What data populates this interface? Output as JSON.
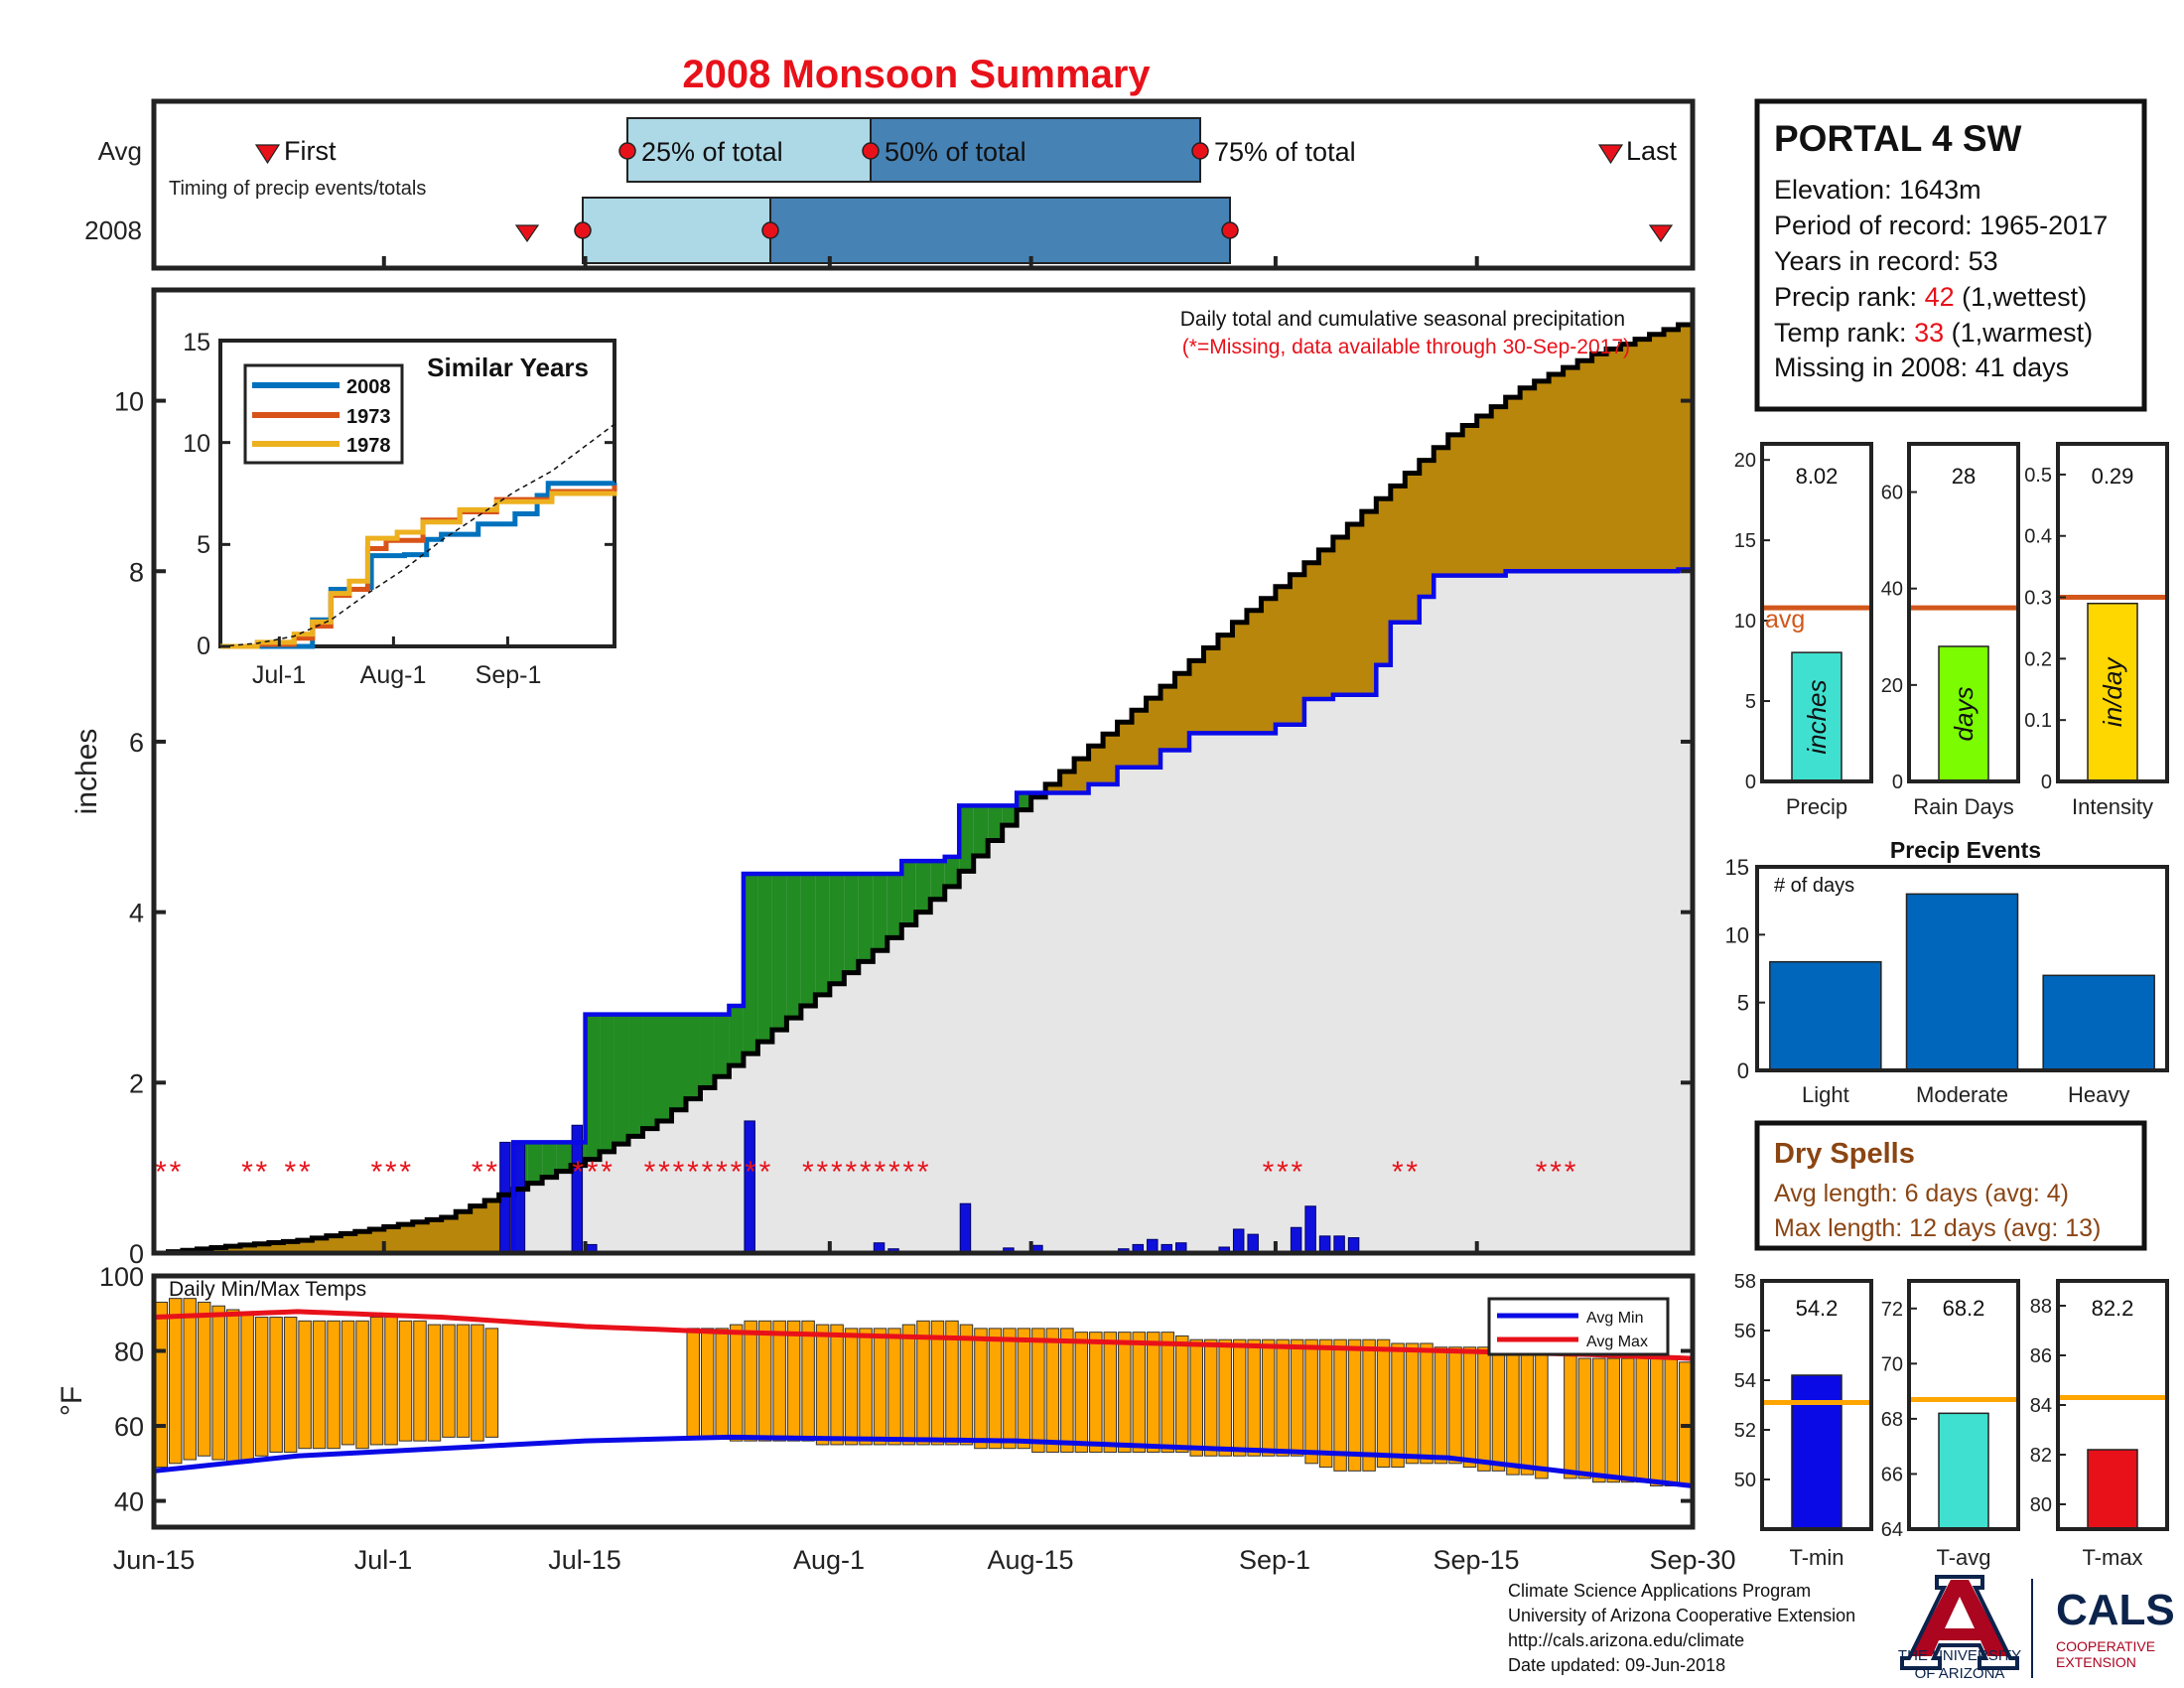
{
  "title": "2008 Monsoon Summary",
  "timing": {
    "row_labels": [
      "Avg",
      "2008"
    ],
    "caption": "Timing of precip events/totals",
    "first_label": "First",
    "last_label": "Last",
    "p25_label": "25% of total",
    "p50_label": "50% of total",
    "p75_label": "75% of total",
    "avg": {
      "first": "Jun-21",
      "p25": "Jul-16",
      "p50": "Jul-27",
      "p75": "Aug-21",
      "last": "Sep-26"
    },
    "year": {
      "first": "Jul-10",
      "p25": "Jul-14",
      "p50": "Jul-28",
      "p75": "Aug-23",
      "last": "Sep-29"
    }
  },
  "station": {
    "name": "PORTAL 4 SW",
    "elevation": "Elevation: 1643m",
    "period": "Period of record: 1965-2017",
    "years": "Years in record: 53",
    "precip_rank_prefix": "Precip rank: ",
    "precip_rank": "42",
    "precip_rank_suffix": " (1,wettest)",
    "temp_rank_prefix": "Temp rank: ",
    "temp_rank": "33",
    "temp_rank_suffix": " (1,warmest)",
    "missing": "Missing in 2008: 41 days"
  },
  "main_chart": {
    "caption": "Daily total and cumulative seasonal precipitation",
    "missing_note": "(*=Missing, data available through 30-Sep-2017)",
    "ylabel": "inches",
    "yticks": [
      "0",
      "2",
      "4",
      "6",
      "8",
      "10"
    ]
  },
  "similar_years": {
    "title": "Similar Years",
    "legend": [
      "2008",
      "1973",
      "1978"
    ],
    "yticks": [
      "0",
      "5",
      "10",
      "15"
    ],
    "xticks": [
      "Jul-1",
      "Aug-1",
      "Sep-1"
    ]
  },
  "temp_chart": {
    "caption": "Daily Min/Max Temps",
    "ylabel": "°F",
    "yticks": [
      "40",
      "60",
      "80",
      "100"
    ],
    "legend_min": "Avg Min",
    "legend_max": "Avg Max"
  },
  "x_axis_labels": [
    "Jun-15",
    "Jul-1",
    "Jul-15",
    "Aug-1",
    "Aug-15",
    "Sep-1",
    "Sep-15",
    "Sep-30"
  ],
  "mini_precip": {
    "values": [
      "8.02",
      "28",
      "0.29"
    ],
    "titles": [
      "Precip",
      "Rain Days",
      "Intensity"
    ],
    "units": [
      "inches",
      "days",
      "in/day"
    ],
    "avg_label": "avg",
    "yticks": [
      [
        "0",
        "5",
        "10",
        "15",
        "20"
      ],
      [
        "0",
        "20",
        "40",
        "60"
      ],
      [
        "0",
        "0.1",
        "0.2",
        "0.3",
        "0.4",
        "0.5"
      ]
    ]
  },
  "precip_events": {
    "title": "Precip Events",
    "ylabel_inside": "# of days",
    "yticks": [
      "0",
      "5",
      "10",
      "15"
    ]
  },
  "dry_spells": {
    "title": "Dry Spells",
    "avg_length": "Avg length: 6 days (avg: 4)",
    "max_length": "Max length: 12 days (avg: 13)"
  },
  "mini_temp": {
    "values": [
      "54.2",
      "68.2",
      "82.2"
    ],
    "titles": [
      "T-min",
      "T-avg",
      "T-max"
    ],
    "yticks": [
      [
        "50",
        "52",
        "54",
        "56",
        "58"
      ],
      [
        "64",
        "66",
        "68",
        "70",
        "72"
      ],
      [
        "80",
        "82",
        "84",
        "86",
        "88"
      ]
    ]
  },
  "footer": {
    "line1": "Climate Science Applications Program",
    "line2": "University of Arizona Cooperative Extension",
    "line3": "http://cals.arizona.edu/climate",
    "line4": " Date updated: 09-Jun-2018",
    "ua_line1": "THE UNIVERSITY",
    "ua_line2": "OF ARIZONA",
    "cals": "CALS",
    "cals_sub1": "COOPERATIVE",
    "cals_sub2": "EXTENSION"
  },
  "colors": {
    "title": "#e8111a",
    "cumulative_fill": "#b8860b",
    "cumulative_line": "#000000",
    "year_fill": "#e6e6e6",
    "year_line": "#0a0ae6",
    "above_fill": "#228b22",
    "missing": "#e8111a",
    "temp_bar": "#ffa500",
    "avg_min": "#0a0ae6",
    "avg_max": "#e8111a",
    "avg_line": "#d2571b",
    "precip_bar": "#40e0d0",
    "days_bar": "#7cfc00",
    "intensity_bar": "#ffd700",
    "events_bar": "#0066bb",
    "dry_spell_text": "#8b4513",
    "ua_blue": "#0c234b",
    "ua_red": "#ab0520"
  },
  "chart_data": [
    {
      "type": "line",
      "title": "2008 Monsoon Summary",
      "caption": "Daily total and cumulative seasonal precipitation",
      "ylabel": "inches",
      "ylim": [
        0,
        11.3
      ],
      "x_range": [
        "Jun-15",
        "Sep-30"
      ],
      "series": [
        {
          "values_key": "avg_cumulative",
          "x": [
            0,
            5,
            10,
            15,
            20,
            25,
            30,
            35,
            40,
            45,
            50,
            55,
            60,
            65,
            70,
            75,
            80,
            85,
            90,
            95,
            100,
            107
          ],
          "y": [
            0,
            0.08,
            0.15,
            0.28,
            0.42,
            0.75,
            1.1,
            1.55,
            2.2,
            2.9,
            3.55,
            4.3,
            5.2,
            5.95,
            6.65,
            7.4,
            8.1,
            8.85,
            9.6,
            10.15,
            10.55,
            10.95
          ]
        },
        {
          "values_key": "2008_cumulative",
          "x": [
            0,
            24,
            25,
            29,
            30,
            40,
            41,
            45,
            50,
            52,
            55,
            56,
            60,
            65,
            67,
            70,
            72,
            78,
            80,
            82,
            85,
            86,
            88,
            89,
            94,
            95,
            106,
            107
          ],
          "y": [
            0,
            0,
            1.3,
            1.3,
            2.8,
            2.9,
            4.45,
            4.45,
            4.45,
            4.6,
            4.65,
            5.25,
            5.4,
            5.5,
            5.7,
            5.9,
            6.1,
            6.2,
            6.5,
            6.55,
            6.9,
            7.4,
            7.7,
            7.95,
            8.0,
            8.0,
            8.02,
            8.02
          ]
        },
        {
          "values_key": "2008_daily",
          "x": [
            24,
            25,
            29,
            30,
            41,
            50,
            51,
            56,
            59,
            61,
            67,
            68,
            69,
            70,
            71,
            74,
            75,
            76,
            79,
            80,
            81,
            82,
            83
          ],
          "y": [
            1.3,
            1.3,
            1.5,
            0.1,
            1.55,
            0.12,
            0.05,
            0.58,
            0.06,
            0.09,
            0.05,
            0.1,
            0.16,
            0.1,
            0.12,
            0.07,
            0.28,
            0.22,
            0.3,
            0.55,
            0.2,
            0.2,
            0.18
          ]
        }
      ]
    },
    {
      "type": "line",
      "title": "Similar Years",
      "xticks": [
        "Jul-1",
        "Aug-1",
        "Sep-1"
      ],
      "ylim": [
        0,
        15
      ],
      "series": [
        {
          "name": "2008",
          "x": [
            0,
            24,
            25,
            29,
            30,
            40,
            41,
            50,
            56,
            60,
            70,
            80,
            86,
            89,
            107
          ],
          "y": [
            0,
            0,
            1.3,
            1.3,
            2.8,
            2.9,
            4.45,
            4.5,
            5.25,
            5.5,
            6.0,
            6.5,
            7.4,
            8.0,
            8.02
          ]
        },
        {
          "name": "1973",
          "x": [
            0,
            10,
            20,
            25,
            30,
            35,
            40,
            45,
            55,
            65,
            75,
            90,
            107
          ],
          "y": [
            0,
            0.1,
            0.4,
            1.0,
            2.5,
            2.8,
            4.8,
            5.2,
            6.2,
            6.6,
            7.2,
            7.6,
            7.9
          ]
        },
        {
          "name": "1978",
          "x": [
            0,
            10,
            20,
            25,
            30,
            35,
            40,
            48,
            55,
            65,
            75,
            90,
            107
          ],
          "y": [
            0,
            0.2,
            0.6,
            1.2,
            2.6,
            3.2,
            5.3,
            5.6,
            6.1,
            6.7,
            7.1,
            7.5,
            7.6
          ]
        },
        {
          "name": "",
          "style": "dashed",
          "x": [
            0,
            10,
            20,
            30,
            40,
            50,
            60,
            70,
            80,
            90,
            107
          ],
          "y": [
            0,
            0.15,
            0.5,
            1.3,
            2.6,
            3.8,
            5.2,
            6.4,
            7.6,
            8.6,
            10.9
          ]
        }
      ]
    },
    {
      "type": "bar",
      "title": "Daily Min/Max Temps",
      "ylabel": "°F",
      "ylim": [
        33,
        100
      ],
      "x_range": [
        "Jun-15",
        "Sep-30"
      ],
      "series": [
        {
          "name": "Avg Min",
          "type": "line",
          "x": [
            0,
            10,
            20,
            30,
            40,
            50,
            60,
            70,
            80,
            90,
            100,
            107
          ],
          "y": [
            48,
            52,
            54,
            56,
            57,
            56.5,
            56,
            54.5,
            53,
            51.5,
            47,
            44
          ]
        },
        {
          "name": "Avg Max",
          "type": "line",
          "x": [
            0,
            10,
            20,
            30,
            40,
            50,
            60,
            70,
            80,
            90,
            100,
            107
          ],
          "y": [
            89,
            90.5,
            89,
            86.5,
            85,
            84,
            83,
            82,
            81,
            80,
            79,
            78
          ]
        }
      ],
      "daily_min": [
        49,
        50,
        51,
        52,
        51,
        50,
        51,
        52,
        53,
        53,
        54,
        54,
        54,
        55,
        54,
        55,
        55,
        56,
        56,
        56,
        57,
        57,
        56,
        57,
        57,
        56,
        56,
        57,
        57,
        57,
        56,
        56,
        56,
        57,
        57,
        56,
        56,
        57,
        57,
        57,
        56,
        56,
        56,
        56,
        56,
        56,
        55,
        55,
        55,
        55,
        55,
        55,
        55,
        55,
        55,
        55,
        55,
        54,
        54,
        54,
        54,
        53,
        53,
        53,
        53,
        53,
        53,
        53,
        53,
        53,
        53,
        53,
        52,
        52,
        52,
        52,
        52,
        52,
        52,
        52,
        50,
        49,
        48,
        48,
        48,
        49,
        49,
        50,
        50,
        50,
        50,
        49,
        48,
        48,
        47,
        47,
        46,
        46,
        46,
        46,
        45,
        45,
        45,
        45,
        44,
        44,
        44,
        44
      ],
      "daily_max": [
        93,
        94,
        94,
        93,
        92,
        91,
        90,
        89,
        89,
        89,
        88,
        88,
        88,
        88,
        88,
        89,
        89,
        88,
        88,
        87,
        87,
        87,
        87,
        86,
        86,
        86,
        86,
        86,
        86,
        86,
        87,
        87,
        87,
        86,
        86,
        86,
        86,
        86,
        86,
        86,
        87,
        88,
        88,
        88,
        88,
        88,
        87,
        87,
        86,
        86,
        86,
        86,
        87,
        88,
        88,
        88,
        87,
        86,
        86,
        86,
        86,
        86,
        86,
        86,
        85,
        85,
        85,
        85,
        85,
        85,
        85,
        84,
        83,
        83,
        83,
        83,
        83,
        83,
        83,
        83,
        83,
        83,
        83,
        83,
        83,
        83,
        82,
        82,
        82,
        81,
        81,
        81,
        81,
        81,
        81,
        80,
        79,
        79,
        79,
        78,
        78,
        78,
        78,
        78,
        78,
        78,
        77,
        77
      ],
      "missing_days": [
        24,
        25,
        26,
        27,
        28,
        29,
        30,
        31,
        32,
        33,
        34,
        35,
        36,
        97
      ]
    },
    {
      "type": "bar",
      "title": "Precip Events",
      "ylabel": "# of days",
      "categories": [
        "Light",
        "Moderate",
        "Heavy"
      ],
      "values": [
        8,
        13,
        7
      ],
      "ylim": [
        0,
        15
      ]
    },
    {
      "type": "bar",
      "categories": [
        "Precip",
        "Rain Days",
        "Intensity"
      ],
      "values": [
        8.02,
        28,
        0.29
      ],
      "averages": [
        10.8,
        36,
        0.3
      ],
      "ylims": [
        [
          0,
          21
        ],
        [
          0,
          70
        ],
        [
          0,
          0.55
        ]
      ]
    },
    {
      "type": "bar",
      "categories": [
        "T-min",
        "T-avg",
        "T-max"
      ],
      "values": [
        54.2,
        68.2,
        82.2
      ],
      "averages": [
        53.1,
        68.7,
        84.3
      ],
      "ylims": [
        [
          48,
          58
        ],
        [
          64,
          73
        ],
        [
          79,
          89
        ]
      ]
    }
  ]
}
